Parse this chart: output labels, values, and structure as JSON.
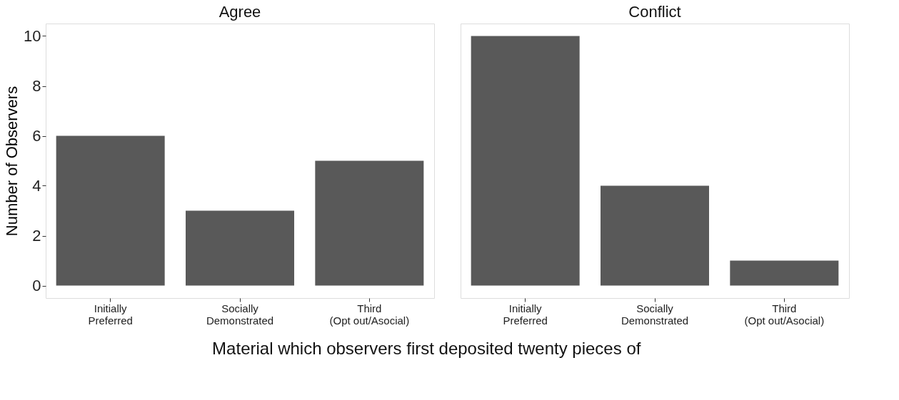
{
  "chart_data": [
    {
      "type": "bar",
      "title": "Agree",
      "ylabel": "Number of Observers",
      "xlabel": "Material which observers first deposited twenty pieces of",
      "categories": [
        "Initially Preferred",
        "Socially Demonstrated",
        "Third (Opt out/Asocial)"
      ],
      "values": [
        6,
        3,
        5
      ],
      "color": "#595959",
      "ylim": [
        -0.5,
        10.5
      ],
      "yticks": [
        0,
        2,
        4,
        6,
        8,
        10
      ],
      "grid": false
    },
    {
      "type": "bar",
      "title": "Conflict",
      "categories": [
        "Initially Preferred",
        "Socially Demonstrated",
        "Third (Opt out/Asocial)"
      ],
      "values": [
        10,
        4,
        1
      ],
      "color": "#595959",
      "ylim": [
        -0.5,
        10.5
      ],
      "yticks": [
        0,
        2,
        4,
        6,
        8,
        10
      ],
      "grid": false,
      "tick_labels": "x"
    }
  ]
}
